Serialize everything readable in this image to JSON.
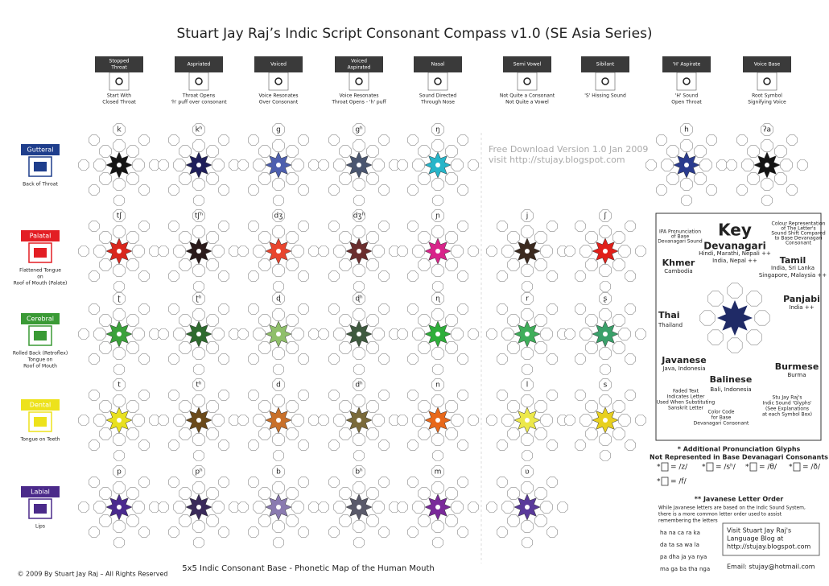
{
  "title": "Stuart Jay Raj’s Indic Script Consonant Compass v1.0 (SE Asia Series)",
  "columns": [
    {
      "label": [
        "Stopped",
        "Throat"
      ],
      "description": [
        "Start With",
        "Closed Throat"
      ]
    },
    {
      "label": [
        "Aspriated"
      ],
      "description": [
        "Throat Opens",
        "'h' puff over consonant"
      ]
    },
    {
      "label": [
        "Voiced"
      ],
      "description": [
        "Voice Resonates",
        "Over Consonant"
      ]
    },
    {
      "label": [
        "Voiced",
        "Aspirated"
      ],
      "description": [
        "Voice Resonates",
        "Throat Opens - 'h' puff"
      ]
    },
    {
      "label": [
        "Nasal"
      ],
      "description": [
        "Sound Directed",
        "Through Nose"
      ]
    },
    {
      "label": [
        "Semi Vowel"
      ],
      "description": [
        "Not Quite a Consonant",
        "Not Quite a Vowel"
      ]
    },
    {
      "label": [
        "Sibilant"
      ],
      "description": [
        "'S' Hissing Sound"
      ]
    },
    {
      "label": [
        "'H' Aspirate"
      ],
      "description": [
        "'H' Sound",
        "Open Throat"
      ]
    },
    {
      "label": [
        "Voice Base"
      ],
      "description": [
        "Root Symbol",
        "Signifying Voice"
      ]
    }
  ],
  "rows": [
    {
      "label": "Gutteral",
      "description": [
        "Back of Throat"
      ],
      "color": "#1f3e8c",
      "cells": [
        {
          "ipa": "k",
          "color": "#151515"
        },
        {
          "ipa": "kʰ",
          "color": "#1f1f5a"
        },
        {
          "ipa": "g",
          "color": "#4d5fae"
        },
        {
          "ipa": "gʰ",
          "color": "#4a5670"
        },
        {
          "ipa": "ŋ",
          "color": "#27b5c9"
        },
        null,
        null,
        {
          "ipa": "h",
          "color": "#2a3b8e"
        },
        {
          "ipa": "ʔa",
          "color": "#151515"
        }
      ]
    },
    {
      "label": "Palatal",
      "description": [
        "Flattened Tongue",
        "on",
        "Roof of Mouth (Palate)"
      ],
      "color": "#e31e24",
      "cells": [
        {
          "ipa": "tʃ",
          "color": "#d9261c"
        },
        {
          "ipa": "tʃʰ",
          "color": "#2a1a1a"
        },
        {
          "ipa": "dʒ",
          "color": "#e8452e"
        },
        {
          "ipa": "dʒʰ",
          "color": "#6b2e2e"
        },
        {
          "ipa": "ɲ",
          "color": "#d8248a"
        },
        {
          "ipa": "j",
          "color": "#3b2a1f"
        },
        {
          "ipa": "ʃ",
          "color": "#e0201a"
        },
        null,
        null
      ]
    },
    {
      "label": "Cerebral",
      "description": [
        "Rolled Back (Retroflex)",
        "Tongue on",
        "Roof of Mouth"
      ],
      "color": "#3a9a35",
      "cells": [
        {
          "ipa": "ʈ",
          "color": "#3aa13a"
        },
        {
          "ipa": "ʈʰ",
          "color": "#2e6b2e"
        },
        {
          "ipa": "ɖ",
          "color": "#8fbf6a"
        },
        {
          "ipa": "ɖʰ",
          "color": "#3f5a3f"
        },
        {
          "ipa": "ɳ",
          "color": "#2eae3a"
        },
        {
          "ipa": "r",
          "color": "#3fae5a"
        },
        {
          "ipa": "ʂ",
          "color": "#3aa06a"
        },
        null,
        null
      ]
    },
    {
      "label": "Dental",
      "description": [
        "Tongue on Teeth"
      ],
      "color": "#ede21c",
      "cells": [
        {
          "ipa": "t",
          "color": "#e8e020"
        },
        {
          "ipa": "tʰ",
          "color": "#6b4a1a"
        },
        {
          "ipa": "d",
          "color": "#c8702a"
        },
        {
          "ipa": "dʰ",
          "color": "#7a6a3a"
        },
        {
          "ipa": "n",
          "color": "#e8681a"
        },
        {
          "ipa": "l",
          "color": "#ece84a"
        },
        {
          "ipa": "s",
          "color": "#e8d020"
        },
        null,
        null
      ]
    },
    {
      "label": "Labial",
      "description": [
        "Lips"
      ],
      "color": "#4b2a8a",
      "cells": [
        {
          "ipa": "p",
          "color": "#4a2a8e"
        },
        {
          "ipa": "pʰ",
          "color": "#3a2a5a"
        },
        {
          "ipa": "b",
          "color": "#8a7ab0"
        },
        {
          "ipa": "bʰ",
          "color": "#5a5a6a"
        },
        {
          "ipa": "m",
          "color": "#7a2a9a"
        },
        {
          "ipa": "ʋ",
          "color": "#5a3a9a"
        },
        null,
        null,
        null
      ]
    }
  ],
  "watermark": [
    "Free Download Version 1.0 Jan 2009",
    "visit http://stujay.blogspot.com"
  ],
  "key": {
    "title": "Key",
    "ipa_note": [
      "IPA Pronunciation",
      "of Base",
      "Devanagari Sound"
    ],
    "colour_note": [
      "Colour Representation",
      "of The Letter's",
      "Sound Shift Compared",
      "to Base Devanagari",
      "Consonant"
    ],
    "devanagari": [
      "Devanagari",
      "Hindi, Marathi, Nepali ++",
      "India, Nepal ++"
    ],
    "khmer": [
      "Khmer",
      "Cambodia"
    ],
    "tamil": [
      "Tamil",
      "India, Sri Lanka",
      "Singapore, Malaysia ++"
    ],
    "panjabi": [
      "Panjabi",
      "India ++"
    ],
    "thai": [
      "Thai",
      "Thailand"
    ],
    "javanese": [
      "Javanese",
      "Java, Indonesia"
    ],
    "burmese": [
      "Burmese",
      "Burma"
    ],
    "balinese": [
      "Balinese",
      "Bali, Indonesia"
    ],
    "faded_note": [
      "Faded Text",
      "Indicates Letter",
      "Used When Substituting",
      "Sanskrit Letter"
    ],
    "color_code_note": [
      "Color Code",
      "for Base",
      "Devanagari Consonant"
    ],
    "glyph_note": [
      "Stu Jay Raj's",
      "Indic Sound 'Glyphs'",
      "(See Explanations",
      "at each Symbol Box)"
    ]
  },
  "glyphs": {
    "title": [
      "* Additional Pronunciation Glyphs",
      "Not Represented in Base Devanagari Consonants"
    ],
    "items": [
      "= /z/",
      "= /sʰ/",
      "= /θ/",
      "= /ð/",
      "= /f/"
    ]
  },
  "javanese": {
    "title": "** Javanese Letter Order",
    "text": [
      "While Javanese letters are based on the Indic Sound System,",
      "there is a more common letter order used to assist",
      "remembering the letters"
    ],
    "order": [
      "ha  na  ca  ra  ka",
      "da  ta  sa  wa  la",
      "pa  dha  ja  ya  nya",
      "ma  ga  ba  tha  nga"
    ],
    "visit": [
      "Visit Stuart Jay Raj's",
      "Language Blog at",
      "http://stujay.blogspot.com"
    ],
    "email": "Email: stujay@hotmail.com"
  },
  "footer": {
    "copyright": "© 2009 By Stuart Jay Raj – All Rights Reserved",
    "caption": "5x5 Indic Consonant Base - Phonetic Map of the Human Mouth"
  }
}
